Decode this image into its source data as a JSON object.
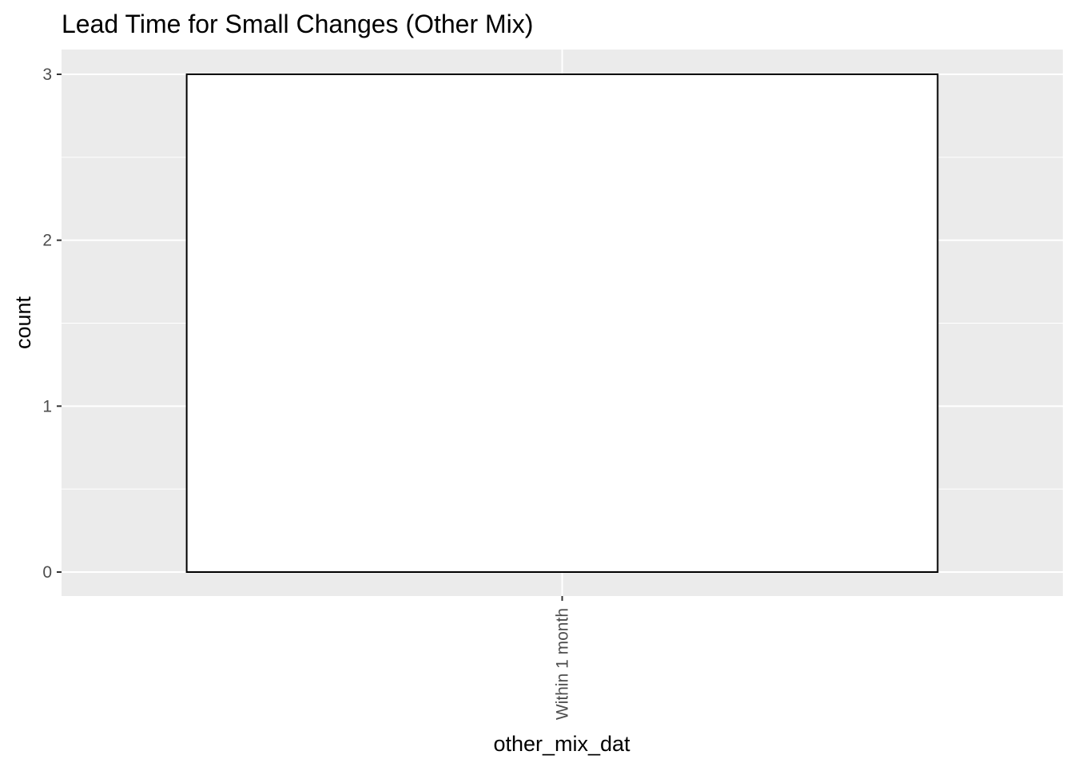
{
  "chart_data": {
    "type": "bar",
    "title": "Lead Time for Small Changes (Other Mix)",
    "xlabel": "other_mix_dat",
    "ylabel": "count",
    "categories": [
      "Within 1 month"
    ],
    "values": [
      3
    ],
    "ylim": [
      0,
      3
    ],
    "yticks": [
      0,
      1,
      2,
      3
    ],
    "grid": true,
    "colors": {
      "panel_background": "#ebebeb",
      "grid_major": "#ffffff",
      "grid_minor": "#ffffff",
      "bar_fill": "#ffffff",
      "bar_outline": "#000000",
      "tick_label": "#4d4d4d",
      "tick_mark": "#333333"
    }
  }
}
